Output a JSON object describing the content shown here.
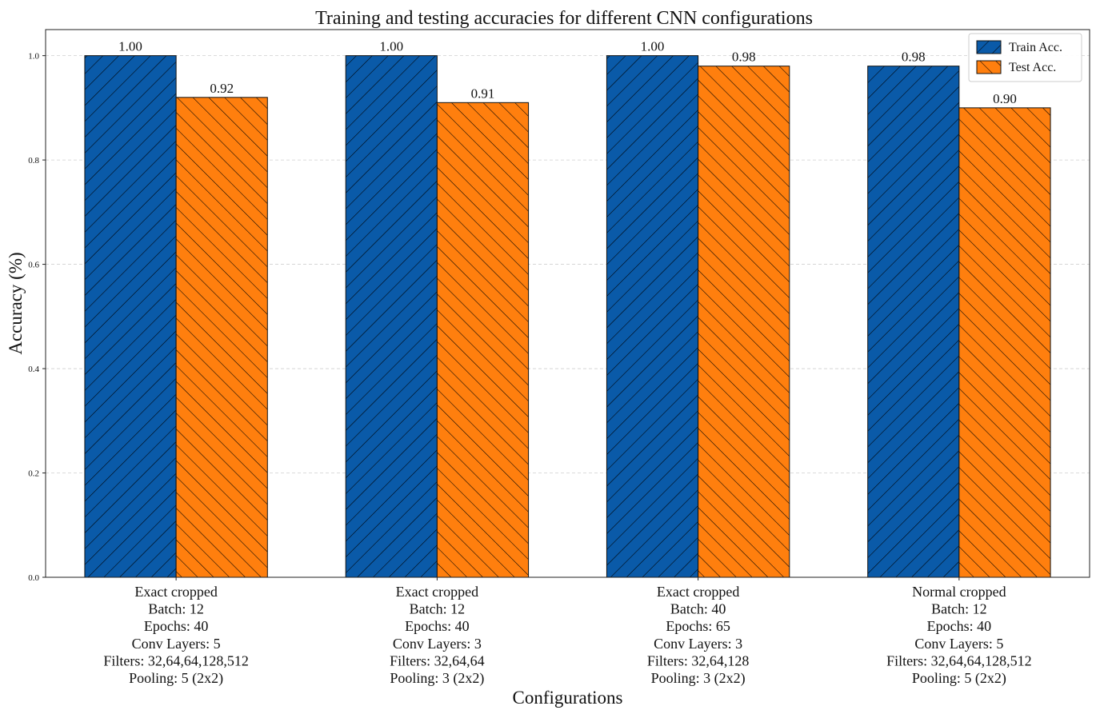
{
  "chart_data": {
    "type": "bar",
    "title": "Training and testing accuracies for different CNN configurations",
    "xlabel": "Configurations",
    "ylabel": "Accuracy (%)",
    "ylim": [
      0,
      1.05
    ],
    "yticks": [
      "0.0",
      "0.2",
      "0.4",
      "0.6",
      "0.8",
      "1.0"
    ],
    "ytick_values": [
      0.0,
      0.2,
      0.4,
      0.6,
      0.8,
      1.0
    ],
    "grid": "horizontal dashed",
    "legend_position": "top-right",
    "categories": [
      [
        "Exact cropped",
        "Batch: 12",
        "Epochs: 40",
        "Conv Layers: 5",
        "Filters: 32,64,64,128,512",
        "Pooling: 5 (2x2)"
      ],
      [
        "Exact cropped",
        "Batch: 12",
        "Epochs: 40",
        "Conv Layers: 3",
        "Filters: 32,64,64",
        "Pooling: 3 (2x2)"
      ],
      [
        "Exact cropped",
        "Batch: 40",
        "Epochs: 65",
        "Conv Layers: 3",
        "Filters: 32,64,128",
        "Pooling: 3 (2x2)"
      ],
      [
        "Normal cropped",
        "Batch: 12",
        "Epochs: 40",
        "Conv Layers: 5",
        "Filters: 32,64,64,128,512",
        "Pooling: 5 (2x2)"
      ]
    ],
    "series": [
      {
        "name": "Train Acc.",
        "values": [
          1.0,
          1.0,
          1.0,
          0.98
        ],
        "labels": [
          "1.00",
          "1.00",
          "1.00",
          "0.98"
        ],
        "color": "#0a5aa8",
        "hatch": "forward"
      },
      {
        "name": "Test Acc.",
        "values": [
          0.92,
          0.91,
          0.98,
          0.9
        ],
        "labels": [
          "0.92",
          "0.91",
          "0.98",
          "0.90"
        ],
        "color": "#ff7f0e",
        "hatch": "backward"
      }
    ]
  }
}
